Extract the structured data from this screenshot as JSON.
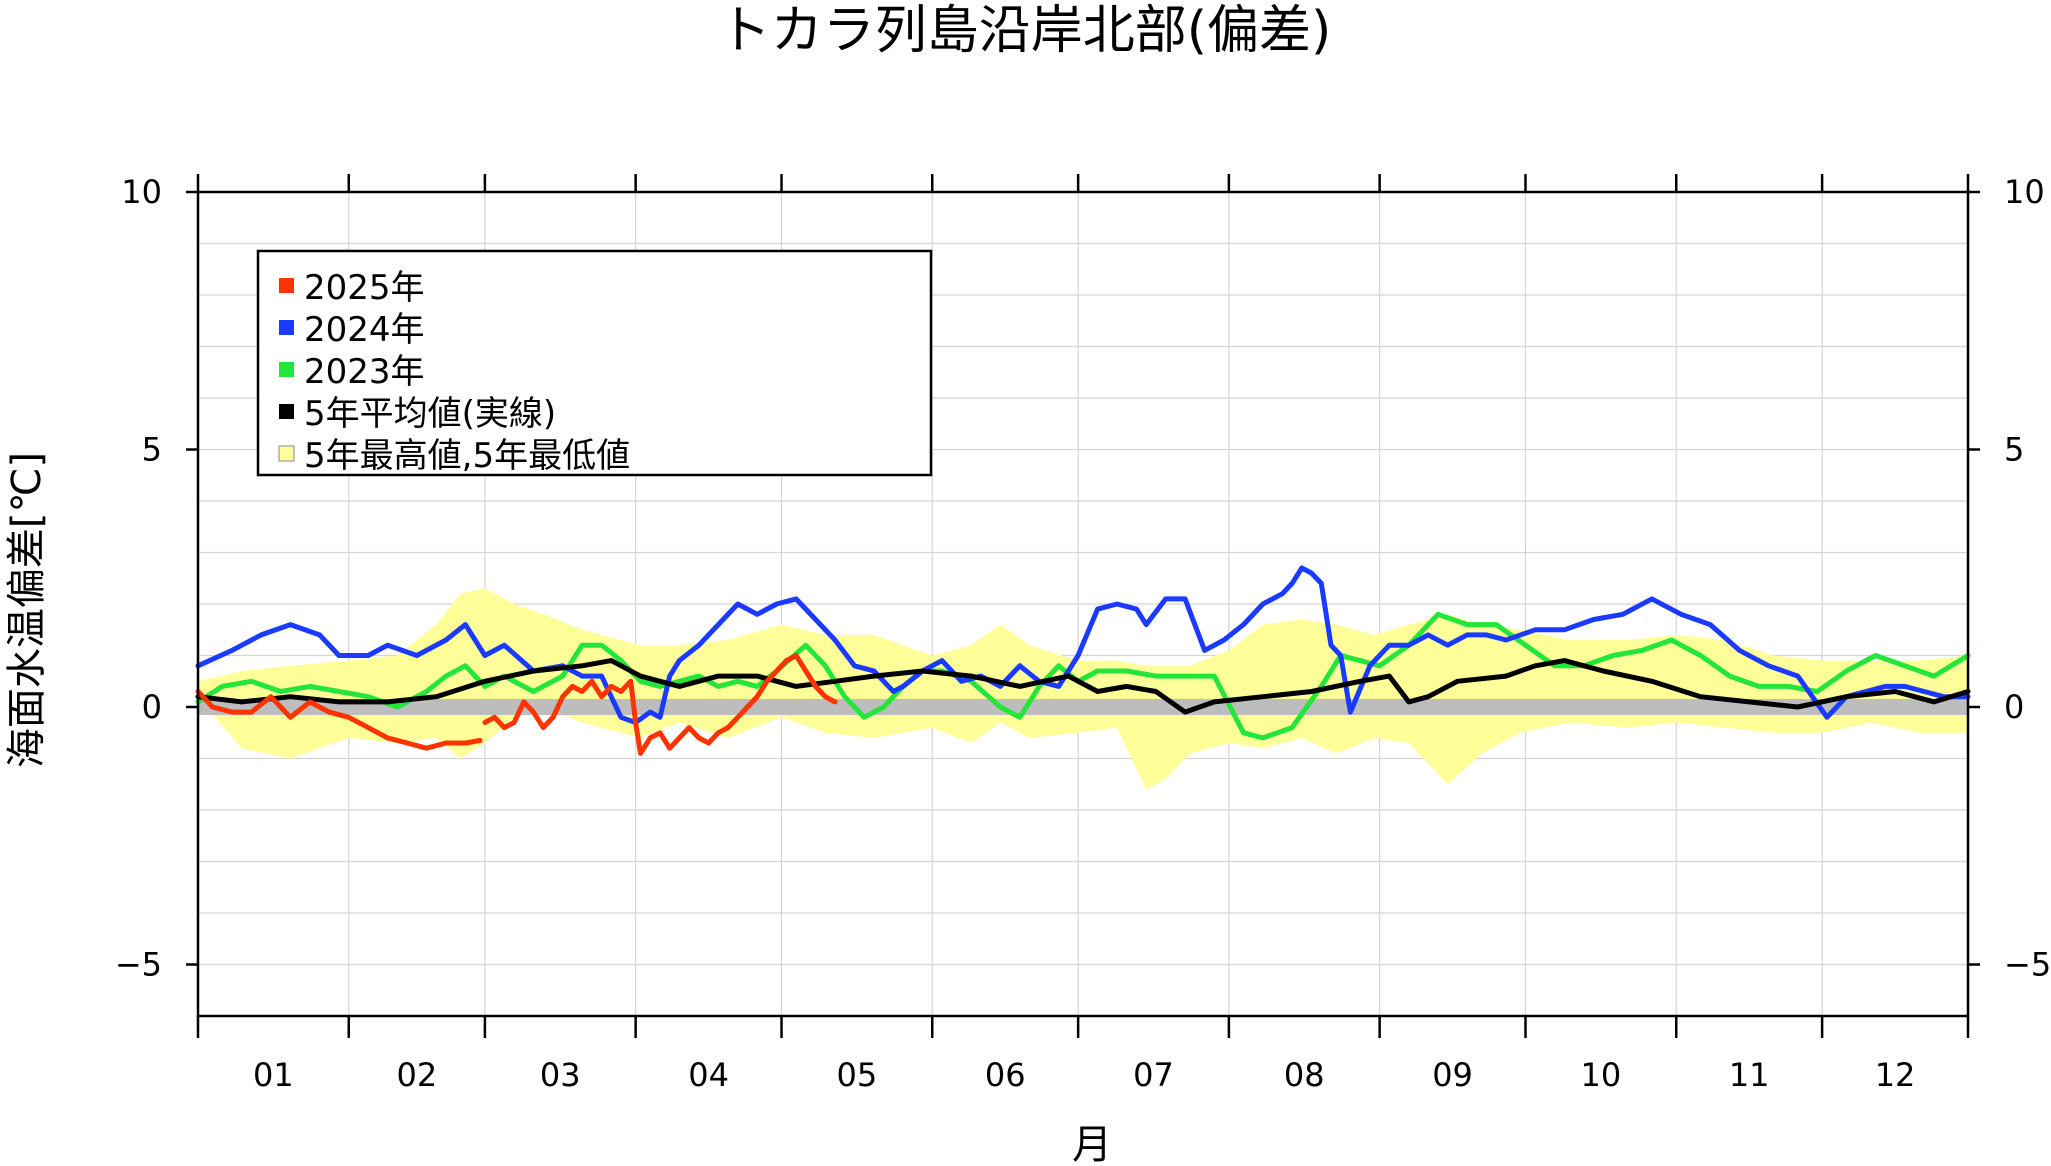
{
  "chart_data": {
    "type": "line",
    "title": "トカラ列島沿岸北部(偏差)",
    "xlabel": "月",
    "ylabel": "海面水温偏差[℃]",
    "ylim": [
      -6,
      10
    ],
    "yticks": [
      "10",
      "5",
      "0",
      "−5"
    ],
    "ytick_values": [
      10,
      5,
      0,
      -5
    ],
    "months": [
      "01",
      "02",
      "03",
      "04",
      "05",
      "06",
      "07",
      "08",
      "09",
      "10",
      "11",
      "12"
    ],
    "x_unit": "day of year",
    "x_range": [
      1,
      365
    ],
    "grid": true,
    "legend_position": "top-left",
    "legend": [
      "2025年",
      "2024年",
      "2023年",
      "5年平均値(実線)",
      "5年最高値,5年最低値"
    ],
    "colors": {
      "y2025": "#ff3300",
      "y2024": "#1a3aff",
      "y2023": "#22e63a",
      "avg": "#000000",
      "band": "#ffff99",
      "zero_band": "#bdbdbd"
    },
    "band": {
      "name": "5年最高値,5年最低値",
      "x": [
        1,
        10,
        20,
        32,
        42,
        50,
        55,
        60,
        66,
        72,
        80,
        92,
        100,
        110,
        121,
        130,
        140,
        152,
        160,
        166,
        172,
        182,
        190,
        196,
        200,
        205,
        213,
        220,
        228,
        235,
        243,
        250,
        258,
        265,
        273,
        283,
        295,
        305,
        315,
        325,
        335,
        345,
        355,
        365
      ],
      "high": [
        0.5,
        0.7,
        0.8,
        0.9,
        1.0,
        1.6,
        2.2,
        2.3,
        2.0,
        1.8,
        1.5,
        1.2,
        1.2,
        1.3,
        1.6,
        1.4,
        1.4,
        1.0,
        1.2,
        1.6,
        1.2,
        0.9,
        0.9,
        0.8,
        0.8,
        0.8,
        1.1,
        1.6,
        1.7,
        1.6,
        1.4,
        1.6,
        1.8,
        1.6,
        1.5,
        1.3,
        1.3,
        1.4,
        1.3,
        1.0,
        0.9,
        0.9,
        0.9,
        1.0
      ],
      "low": [
        0.2,
        -0.8,
        -1.0,
        -0.6,
        -0.7,
        -0.6,
        -1.0,
        -0.7,
        -0.2,
        0.0,
        -0.3,
        -0.6,
        -0.3,
        -0.6,
        -0.2,
        -0.5,
        -0.6,
        -0.4,
        -0.7,
        -0.3,
        -0.6,
        -0.5,
        -0.4,
        -1.6,
        -1.4,
        -0.9,
        -0.7,
        -0.8,
        -0.6,
        -0.9,
        -0.6,
        -0.7,
        -1.5,
        -0.9,
        -0.5,
        -0.3,
        -0.4,
        -0.3,
        -0.4,
        -0.5,
        -0.5,
        -0.3,
        -0.5,
        -0.5
      ]
    },
    "series": [
      {
        "name": "2025年",
        "color": "#ff3300",
        "segments": [
          {
            "x": [
              1,
              4,
              8,
              12,
              16,
              20,
              24,
              28,
              32,
              36,
              40,
              44,
              48,
              52,
              56,
              59
            ],
            "y": [
              0.3,
              0.0,
              -0.1,
              -0.1,
              0.2,
              -0.2,
              0.1,
              -0.1,
              -0.2,
              -0.4,
              -0.6,
              -0.7,
              -0.8,
              -0.7,
              -0.7,
              -0.65
            ]
          },
          {
            "x": [
              60,
              62,
              64,
              66,
              68,
              70,
              72,
              74,
              76,
              78,
              80,
              82,
              84,
              86,
              88,
              90,
              91,
              92,
              94,
              96,
              98,
              100,
              102,
              104,
              106,
              108,
              110,
              112,
              114,
              116,
              118,
              120,
              122,
              124,
              126,
              128,
              130,
              132
            ],
            "y": [
              -0.3,
              -0.2,
              -0.4,
              -0.3,
              0.1,
              -0.1,
              -0.4,
              -0.2,
              0.2,
              0.4,
              0.3,
              0.5,
              0.2,
              0.4,
              0.3,
              0.5,
              -0.3,
              -0.9,
              -0.6,
              -0.5,
              -0.8,
              -0.6,
              -0.4,
              -0.6,
              -0.7,
              -0.5,
              -0.4,
              -0.2,
              0.0,
              0.2,
              0.5,
              0.7,
              0.9,
              1.0,
              0.7,
              0.4,
              0.2,
              0.1
            ]
          }
        ]
      },
      {
        "name": "2024年",
        "color": "#1a3aff",
        "x": [
          1,
          8,
          14,
          20,
          26,
          30,
          36,
          40,
          46,
          52,
          56,
          60,
          64,
          70,
          76,
          80,
          84,
          88,
          91,
          94,
          96,
          98,
          100,
          104,
          108,
          112,
          116,
          120,
          124,
          128,
          132,
          136,
          140,
          144,
          146,
          150,
          154,
          158,
          162,
          166,
          170,
          174,
          178,
          182,
          186,
          190,
          194,
          196,
          200,
          204,
          208,
          212,
          216,
          220,
          224,
          226,
          228,
          230,
          232,
          234,
          236,
          238,
          242,
          246,
          250,
          254,
          258,
          262,
          266,
          270,
          276,
          282,
          288,
          294,
          300,
          306,
          312,
          318,
          324,
          330,
          336,
          340,
          344,
          348,
          352,
          356,
          360,
          365
        ],
        "y": [
          0.8,
          1.1,
          1.4,
          1.6,
          1.4,
          1.0,
          1.0,
          1.2,
          1.0,
          1.3,
          1.6,
          1.0,
          1.2,
          0.7,
          0.8,
          0.6,
          0.6,
          -0.2,
          -0.3,
          -0.1,
          -0.2,
          0.6,
          0.9,
          1.2,
          1.6,
          2.0,
          1.8,
          2.0,
          2.1,
          1.7,
          1.3,
          0.8,
          0.7,
          0.3,
          0.4,
          0.7,
          0.9,
          0.5,
          0.6,
          0.4,
          0.8,
          0.5,
          0.4,
          1.0,
          1.9,
          2.0,
          1.9,
          1.6,
          2.1,
          2.1,
          1.1,
          1.3,
          1.6,
          2.0,
          2.2,
          2.4,
          2.7,
          2.6,
          2.4,
          1.2,
          1.0,
          -0.1,
          0.8,
          1.2,
          1.2,
          1.4,
          1.2,
          1.4,
          1.4,
          1.3,
          1.5,
          1.5,
          1.7,
          1.8,
          2.1,
          1.8,
          1.6,
          1.1,
          0.8,
          0.6,
          -0.2,
          0.2,
          0.3,
          0.4,
          0.4,
          0.3,
          0.2,
          0.2
        ]
      },
      {
        "name": "2023年",
        "color": "#22e63a",
        "x": [
          1,
          6,
          12,
          18,
          24,
          30,
          36,
          42,
          48,
          52,
          56,
          60,
          64,
          70,
          76,
          80,
          84,
          88,
          92,
          96,
          100,
          104,
          108,
          112,
          116,
          120,
          126,
          130,
          134,
          138,
          142,
          146,
          150,
          154,
          160,
          166,
          170,
          174,
          178,
          182,
          186,
          192,
          198,
          204,
          210,
          216,
          220,
          226,
          232,
          236,
          240,
          244,
          250,
          256,
          262,
          268,
          274,
          280,
          286,
          292,
          298,
          304,
          310,
          316,
          322,
          328,
          334,
          340,
          346,
          352,
          358,
          365
        ],
        "y": [
          0.1,
          0.4,
          0.5,
          0.3,
          0.4,
          0.3,
          0.2,
          0.0,
          0.3,
          0.6,
          0.8,
          0.4,
          0.6,
          0.3,
          0.6,
          1.2,
          1.2,
          0.9,
          0.5,
          0.4,
          0.5,
          0.6,
          0.4,
          0.5,
          0.4,
          0.7,
          1.2,
          0.8,
          0.2,
          -0.2,
          0.0,
          0.4,
          0.7,
          0.7,
          0.5,
          0.0,
          -0.2,
          0.4,
          0.8,
          0.5,
          0.7,
          0.7,
          0.6,
          0.6,
          0.6,
          -0.5,
          -0.6,
          -0.4,
          0.4,
          1.0,
          0.9,
          0.8,
          1.2,
          1.8,
          1.6,
          1.6,
          1.2,
          0.8,
          0.8,
          1.0,
          1.1,
          1.3,
          1.0,
          0.6,
          0.4,
          0.4,
          0.3,
          0.7,
          1.0,
          0.8,
          0.6,
          1.0
        ]
      },
      {
        "name": "5年平均値(実線)",
        "color": "#000000",
        "x": [
          1,
          10,
          20,
          30,
          40,
          50,
          60,
          70,
          80,
          86,
          92,
          100,
          108,
          116,
          124,
          132,
          140,
          150,
          160,
          170,
          180,
          186,
          192,
          198,
          204,
          210,
          220,
          230,
          240,
          246,
          250,
          254,
          260,
          270,
          276,
          282,
          290,
          300,
          310,
          320,
          330,
          340,
          350,
          358,
          365
        ],
        "y": [
          0.2,
          0.1,
          0.2,
          0.1,
          0.1,
          0.2,
          0.5,
          0.7,
          0.8,
          0.9,
          0.6,
          0.4,
          0.6,
          0.6,
          0.4,
          0.5,
          0.6,
          0.7,
          0.6,
          0.4,
          0.6,
          0.3,
          0.4,
          0.3,
          -0.1,
          0.1,
          0.2,
          0.3,
          0.5,
          0.6,
          0.1,
          0.2,
          0.5,
          0.6,
          0.8,
          0.9,
          0.7,
          0.5,
          0.2,
          0.1,
          0.0,
          0.2,
          0.3,
          0.1,
          0.3
        ]
      }
    ]
  }
}
